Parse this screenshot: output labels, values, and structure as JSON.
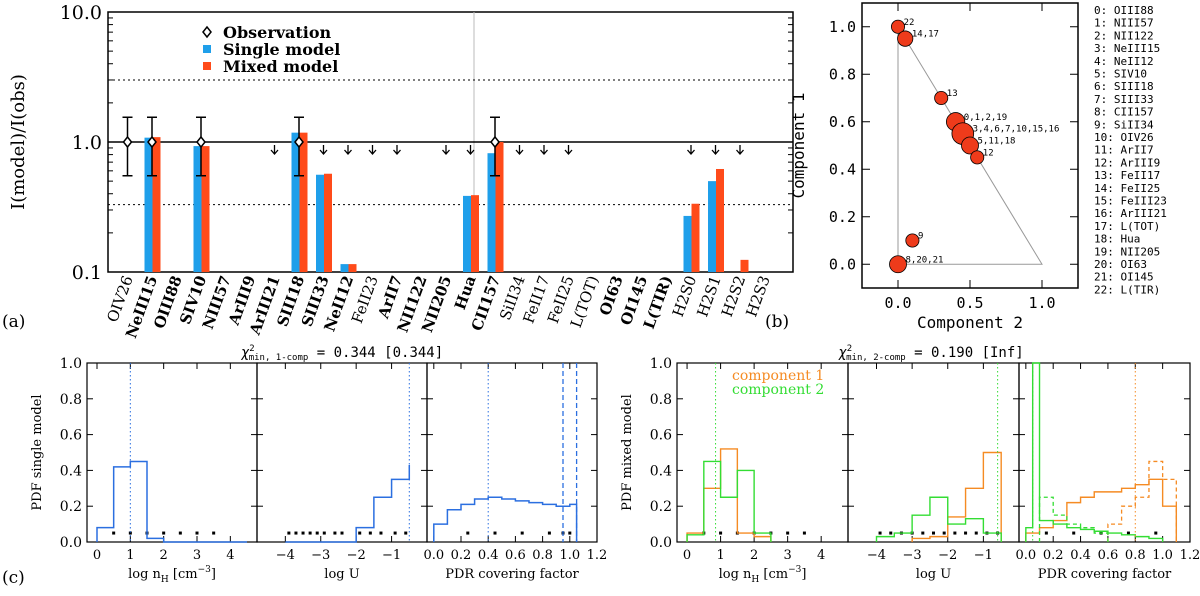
{
  "colors": {
    "single": "#1f9fea",
    "mixed": "#ff4b1a",
    "comp1": "#f58b23",
    "comp2": "#33dd33",
    "line": "#2b6fe0",
    "grey": "#999999",
    "node": "#ee3b1b"
  },
  "panel_labels": {
    "a": "(a)",
    "b": "(b)",
    "c": "(c)"
  },
  "chart_data": [
    {
      "type": "bar",
      "id": "a",
      "ylabel": "I(model)/I(obs)",
      "yscale": "log",
      "ylim": [
        0.1,
        10
      ],
      "yticks": [
        "0.1",
        "1.0",
        "10.0"
      ],
      "legend": {
        "observation": "Observation",
        "single": "Single model",
        "mixed": "Mixed model"
      },
      "categories": [
        "OIV26",
        "NeIII15",
        "OIII88",
        "SIV10",
        "NIII57",
        "ArIII9",
        "ArIII21",
        "SIII18",
        "SIII33",
        "NeII12",
        "FeII23",
        "ArII7",
        "NII122",
        "NII205",
        "Hua",
        "CII157",
        "SiII34",
        "FeII17",
        "FeII25",
        "L(TOT)",
        "OI63",
        "OI145",
        "L(TIR)",
        "H2S0",
        "H2S1",
        "H2S2",
        "H2S3"
      ],
      "bold_categories": [
        "NeIII15",
        "OIII88",
        "SIV10",
        "NIII57",
        "ArIII9",
        "ArIII21",
        "SIII18",
        "SIII33",
        "NeII12",
        "ArII7",
        "NII122",
        "NII205",
        "Hua",
        "CII157",
        "OI63",
        "OI145",
        "L(TIR)"
      ],
      "series": [
        {
          "name": "Single model",
          "values": [
            null,
            1.08,
            null,
            0.93,
            null,
            null,
            null,
            1.18,
            0.56,
            0.115,
            null,
            null,
            null,
            null,
            0.385,
            0.82,
            null,
            null,
            null,
            null,
            null,
            null,
            null,
            0.27,
            0.5,
            null,
            null
          ]
        },
        {
          "name": "Mixed model",
          "values": [
            null,
            1.09,
            null,
            0.93,
            null,
            null,
            null,
            1.18,
            0.57,
            0.115,
            null,
            null,
            null,
            null,
            0.39,
            1.0,
            null,
            null,
            null,
            null,
            null,
            null,
            null,
            0.335,
            0.62,
            0.124,
            null
          ]
        }
      ],
      "observations": {
        "indices": [
          0,
          1,
          3,
          7,
          15
        ],
        "value": 1.0,
        "err_low": 0.55,
        "err_high": 1.55
      },
      "upper_limit_indices": [
        6,
        8,
        9,
        10,
        11,
        13,
        14,
        16,
        17,
        18,
        23,
        24,
        25
      ],
      "reference_lines": {
        "solid": 1.0,
        "dotted": [
          0.33,
          3.0
        ]
      }
    },
    {
      "type": "scatter",
      "id": "b",
      "xlabel": "Component 2",
      "ylabel": "Component 1",
      "xlim": [
        -0.25,
        1.25
      ],
      "ylim": [
        -0.1,
        1.1
      ],
      "xticks": [
        "0.0",
        "0.5",
        "1.0"
      ],
      "yticks": [
        "0.0",
        "0.2",
        "0.4",
        "0.6",
        "0.8",
        "1.0"
      ],
      "points": [
        {
          "label": "22",
          "x": 0.0,
          "y": 1.0,
          "n": 1
        },
        {
          "label": "14,17",
          "x": 0.05,
          "y": 0.95,
          "n": 2
        },
        {
          "label": "13",
          "x": 0.3,
          "y": 0.7,
          "n": 1
        },
        {
          "label": "0,1,2,19",
          "x": 0.4,
          "y": 0.6,
          "n": 4
        },
        {
          "label": "3,4,6,7,10,15,16",
          "x": 0.45,
          "y": 0.55,
          "n": 7
        },
        {
          "label": "5,11,18",
          "x": 0.5,
          "y": 0.5,
          "n": 3
        },
        {
          "label": "12",
          "x": 0.55,
          "y": 0.45,
          "n": 1
        },
        {
          "label": "9",
          "x": 0.1,
          "y": 0.1,
          "n": 1
        },
        {
          "label": "8,20,21",
          "x": 0.0,
          "y": 0.0,
          "n": 3
        }
      ],
      "index_legend": [
        "0: OIII88",
        "1: NIII57",
        "2: NII122",
        "3: NeIII15",
        "4: NeII12",
        "5: SIV10",
        "6: SIII18",
        "7: SIII33",
        "8: CII157",
        "9: SiII34",
        "10: OIV26",
        "11:   ArII7",
        "12: ArIII9",
        "13: FeII17",
        "14: FeII25",
        "15: FeIII23",
        "16: ArIII21",
        "17: L(TOT)",
        "18:   Hua",
        "19: NII205",
        "20: OI63",
        "21: OI145",
        "22: L(TIR)"
      ]
    },
    {
      "type": "histogram",
      "id": "c-left",
      "title_main": "χ",
      "title_sup": "2",
      "title_sub": "min, 1-comp",
      "title_val": " = 0.344 [0.344]",
      "ylabel": "PDF single model",
      "ylim": [
        0,
        1
      ],
      "yticks": [
        "0.0",
        "0.2",
        "0.4",
        "0.6",
        "0.8",
        "1.0"
      ],
      "panels": [
        {
          "xlabel": "log n_H [cm^-3]",
          "xlim": [
            -0.3,
            4.8
          ],
          "xticks": [
            "0",
            "1",
            "2",
            "3",
            "4"
          ],
          "edges": [
            0,
            0.5,
            1,
            1.5,
            2,
            2.5,
            3,
            3.5,
            4,
            4.5
          ],
          "values": [
            0.08,
            0.42,
            0.45,
            0.02,
            0,
            0,
            0,
            0,
            0
          ],
          "marker": 1.0,
          "dots": [
            0.5,
            1.0,
            1.5,
            2.0,
            2.5,
            3.0,
            3.5
          ]
        },
        {
          "xlabel": "log U",
          "xlim": [
            -4.8,
            0.0
          ],
          "xticks": [
            "-4",
            "-3",
            "-2",
            "-1"
          ],
          "edges": [
            -4,
            -3.5,
            -3,
            -2.5,
            -2,
            -1.5,
            -1,
            -0.5
          ],
          "values": [
            0,
            0,
            0,
            0,
            0.08,
            0.25,
            0.35,
            0.43
          ],
          "marker": -0.5,
          "dots": [
            -3.9,
            -3.7,
            -3.5,
            -3.3,
            -3.1,
            -2.9,
            -2.6,
            -2.4,
            -1.9,
            -1.6,
            -1.3,
            -0.9,
            -0.6
          ]
        },
        {
          "xlabel": "PDR covering factor",
          "xlim": [
            -0.05,
            1.2
          ],
          "xticks": [
            "0.0",
            "0.2",
            "0.4",
            "0.6",
            "0.8",
            "1.0",
            "1.2"
          ],
          "edges": [
            0,
            0.1,
            0.2,
            0.3,
            0.4,
            0.5,
            0.6,
            0.7,
            0.8,
            0.9,
            1.0,
            1.05
          ],
          "values": [
            0.1,
            0.18,
            0.21,
            0.24,
            0.25,
            0.24,
            0.23,
            0.22,
            0.21,
            0.2,
            0.21
          ],
          "marker": 0.4,
          "dashed": [
            0.95,
            1.05
          ],
          "dots": [
            0.25,
            0.45,
            0.65,
            0.85,
            0.95,
            1.0
          ]
        }
      ]
    },
    {
      "type": "histogram",
      "id": "c-right",
      "title_main": "χ",
      "title_sup": "2",
      "title_sub": "min, 2-comp",
      "title_val": " = 0.190 [Inf]",
      "ylabel": "PDF mixed model",
      "ylim": [
        0,
        1
      ],
      "yticks": [
        "0.0",
        "0.2",
        "0.4",
        "0.6",
        "0.8",
        "1.0"
      ],
      "legend": [
        "component 1",
        "component 2"
      ],
      "panels": [
        {
          "xlabel": "log n_H [cm^-3]",
          "xlim": [
            -0.3,
            4.8
          ],
          "xticks": [
            "0",
            "1",
            "2",
            "3",
            "4"
          ],
          "series1": {
            "edges": [
              0,
              0.5,
              1,
              1.5,
              2,
              2.5
            ],
            "values": [
              0.05,
              0.3,
              0.52,
              0.05,
              0.03
            ]
          },
          "series2": {
            "edges": [
              0,
              0.5,
              1,
              1.5,
              2,
              2.5
            ],
            "values": [
              0.04,
              0.45,
              0.25,
              0.4,
              0.05
            ]
          },
          "marker2": 0.85,
          "dots": [
            0.5,
            1.0,
            1.5,
            2.0,
            2.5,
            3.0,
            3.5
          ]
        },
        {
          "xlabel": "log U",
          "xlim": [
            -4.8,
            0.0
          ],
          "xticks": [
            "-4",
            "-3",
            "-2",
            "-1"
          ],
          "series1": {
            "edges": [
              -3,
              -2.5,
              -2,
              -1.5,
              -1,
              -0.5
            ],
            "values": [
              0.02,
              0.03,
              0.14,
              0.3,
              0.5
            ]
          },
          "series2": {
            "edges": [
              -4,
              -3.5,
              -3,
              -2.5,
              -2,
              -1.5,
              -1,
              -0.5
            ],
            "values": [
              0.03,
              0.05,
              0.15,
              0.25,
              0.1,
              0.13,
              0.05
            ]
          },
          "marker2": -0.6,
          "dots": [
            -3.9,
            -3.6,
            -3.3,
            -3.0,
            -2.7,
            -2.4,
            -2.1,
            -1.8,
            -1.5,
            -1.2,
            -0.9,
            -0.6
          ]
        },
        {
          "xlabel": "PDR covering factor",
          "xlim": [
            -0.05,
            1.2
          ],
          "xticks": [
            "0.0",
            "0.2",
            "0.4",
            "0.6",
            "0.8",
            "1.0",
            "1.2"
          ],
          "series1": {
            "edges": [
              0,
              0.1,
              0.2,
              0.3,
              0.4,
              0.5,
              0.6,
              0.7,
              0.8,
              0.9,
              1.0,
              1.1
            ],
            "values": [
              0.05,
              0.08,
              0.12,
              0.22,
              0.25,
              0.28,
              0.28,
              0.3,
              0.32,
              0.35,
              0.2
            ]
          },
          "series1_dashed": {
            "edges": [
              0.6,
              0.7,
              0.8,
              0.9,
              1.0,
              1.1
            ],
            "values": [
              0.1,
              0.2,
              0.25,
              0.45,
              0.35
            ]
          },
          "series2": {
            "edges": [
              0,
              0.05,
              0.1,
              0.2,
              0.3,
              0.4,
              0.5,
              0.6,
              0.7,
              0.8,
              0.9,
              1.0
            ],
            "values": [
              0.08,
              1.0,
              0.12,
              0.1,
              0.08,
              0.07,
              0.06,
              0.05,
              0.04,
              0.03,
              0.02
            ]
          },
          "series2_dashed": {
            "edges": [
              0.1,
              0.2,
              0.3,
              0.4,
              0.5,
              0.6
            ],
            "values": [
              0.25,
              0.15,
              0.1,
              0.08,
              0.05
            ]
          },
          "marker1": 0.8,
          "marker2": 0.05,
          "dots": [
            0.15,
            0.35,
            0.55,
            0.75,
            0.95
          ]
        }
      ]
    }
  ]
}
